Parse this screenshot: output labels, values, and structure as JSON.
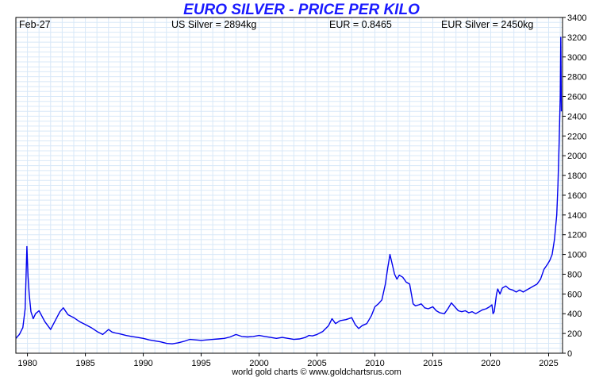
{
  "header": {
    "date": "Feb-27",
    "us_silver": "US Silver = 2894kg",
    "eur_rate": "EUR = 0.8465",
    "eur_silver": "EUR Silver = 2450kg"
  },
  "footer": {
    "credit": "world gold charts © www.goldchartsrus.com"
  },
  "colors": {
    "title": "#1a1aff",
    "line": "#0000ee",
    "grid": "#d8e8f8"
  },
  "chart_data": {
    "type": "line",
    "title": "EURO SILVER - PRICE PER KILO",
    "xlabel": "",
    "ylabel": "",
    "xlim": [
      1979.0,
      2026.2
    ],
    "ylim": [
      0,
      3400
    ],
    "x_ticks": [
      1980,
      1985,
      1990,
      1995,
      2000,
      2005,
      2010,
      2015,
      2020,
      2025
    ],
    "y_ticks": [
      0,
      200,
      400,
      600,
      800,
      1000,
      1200,
      1400,
      1600,
      1800,
      2000,
      2200,
      2400,
      2600,
      2800,
      3000,
      3200,
      3400
    ],
    "grid": true,
    "y_axis_side": "right",
    "series": [
      {
        "x": [
          1979.0,
          1979.3,
          1979.6,
          1979.8,
          1979.95,
          1980.05,
          1980.15,
          1980.3,
          1980.5,
          1980.7,
          1981.0,
          1981.5,
          1982.0,
          1982.4,
          1982.8,
          1983.1,
          1983.5,
          1984.0,
          1984.5,
          1985.0,
          1985.5,
          1986.0,
          1986.5,
          1987.0,
          1987.3,
          1987.6,
          1988.0,
          1988.5,
          1989.0,
          1989.5,
          1990.0,
          1990.5,
          1991.0,
          1991.5,
          1992.0,
          1992.5,
          1993.0,
          1993.5,
          1994.0,
          1994.5,
          1995.0,
          1995.5,
          1996.0,
          1996.5,
          1997.0,
          1997.5,
          1998.0,
          1998.5,
          1999.0,
          1999.5,
          2000.0,
          2000.5,
          2001.0,
          2001.5,
          2002.0,
          2002.5,
          2003.0,
          2003.5,
          2004.0,
          2004.3,
          2004.6,
          2005.0,
          2005.5,
          2006.0,
          2006.3,
          2006.6,
          2007.0,
          2007.5,
          2008.0,
          2008.3,
          2008.6,
          2008.9,
          2009.3,
          2009.7,
          2010.0,
          2010.3,
          2010.6,
          2010.9,
          2011.1,
          2011.3,
          2011.5,
          2011.7,
          2011.9,
          2012.1,
          2012.4,
          2012.7,
          2013.0,
          2013.3,
          2013.5,
          2013.8,
          2014.0,
          2014.3,
          2014.6,
          2015.0,
          2015.3,
          2015.6,
          2016.0,
          2016.3,
          2016.6,
          2016.9,
          2017.2,
          2017.5,
          2017.8,
          2018.1,
          2018.4,
          2018.7,
          2019.0,
          2019.3,
          2019.6,
          2019.9,
          2020.1,
          2020.2,
          2020.3,
          2020.5,
          2020.6,
          2020.8,
          2021.0,
          2021.3,
          2021.6,
          2021.9,
          2022.2,
          2022.5,
          2022.8,
          2023.1,
          2023.4,
          2023.7,
          2024.0,
          2024.3,
          2024.6,
          2024.9,
          2025.1,
          2025.3,
          2025.5,
          2025.7,
          2025.8,
          2025.9,
          2026.0,
          2026.05,
          2026.1
        ],
        "values": [
          150,
          190,
          260,
          450,
          1080,
          780,
          600,
          420,
          350,
          400,
          430,
          320,
          240,
          330,
          420,
          460,
          390,
          360,
          320,
          290,
          260,
          220,
          190,
          240,
          215,
          205,
          195,
          180,
          170,
          160,
          150,
          135,
          125,
          115,
          100,
          95,
          105,
          120,
          140,
          135,
          130,
          135,
          140,
          145,
          150,
          165,
          190,
          170,
          165,
          170,
          180,
          170,
          160,
          150,
          160,
          150,
          140,
          145,
          160,
          180,
          175,
          190,
          220,
          280,
          350,
          300,
          330,
          340,
          360,
          290,
          250,
          280,
          300,
          380,
          470,
          500,
          540,
          700,
          860,
          1000,
          900,
          800,
          750,
          790,
          770,
          720,
          700,
          500,
          480,
          490,
          500,
          460,
          450,
          470,
          430,
          410,
          400,
          450,
          510,
          470,
          430,
          420,
          430,
          410,
          420,
          400,
          420,
          440,
          450,
          470,
          490,
          400,
          420,
          600,
          650,
          600,
          660,
          680,
          650,
          640,
          620,
          640,
          620,
          640,
          660,
          680,
          700,
          750,
          850,
          900,
          940,
          1000,
          1150,
          1400,
          1700,
          2100,
          2600,
          3200,
          2450
        ]
      }
    ]
  }
}
